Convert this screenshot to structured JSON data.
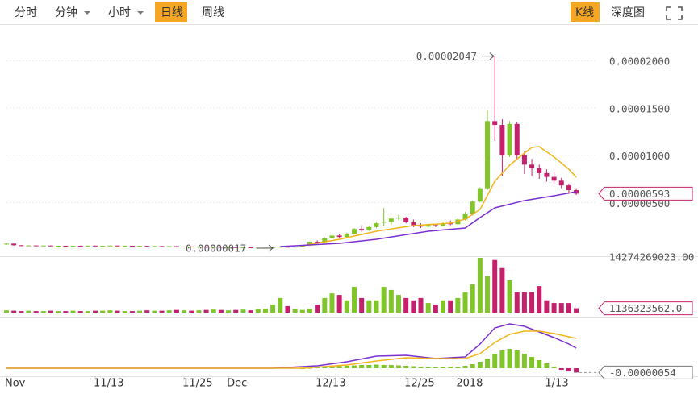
{
  "toolbar": {
    "left_tabs": [
      "分时",
      "分钟",
      "小时",
      "日线",
      "周线"
    ],
    "active_left": 3,
    "right_tabs": [
      "K线",
      "深度图"
    ],
    "active_right": 0
  },
  "chart_data": {
    "type": "candlestick",
    "up_color": "#80c52a",
    "down_color": "#c4206b",
    "ylim": [
      0,
      2.385e-05
    ],
    "yticks": [
      {
        "value": 5e-06,
        "label": "0.00000500"
      },
      {
        "value": 1e-05,
        "label": "0.00001000"
      },
      {
        "value": 1.5e-05,
        "label": "0.00001500"
      },
      {
        "value": 2e-05,
        "label": "0.00002000"
      }
    ],
    "grid": true,
    "xticks": [
      {
        "value": 0,
        "label": "Nov"
      },
      {
        "value": 12,
        "label": "11/13"
      },
      {
        "value": 24,
        "label": "11/25"
      },
      {
        "value": 30,
        "label": "Dec"
      },
      {
        "value": 42,
        "label": "12/13"
      },
      {
        "value": 54,
        "label": "12/25"
      },
      {
        "value": 61,
        "label": "2018"
      },
      {
        "value": 73,
        "label": "1/13"
      }
    ],
    "ohlc": [
      [
        6e-07,
        7e-07,
        5e-07,
        6.5e-07
      ],
      [
        6.5e-07,
        6.6e-07,
        4.5e-07,
        4.8e-07
      ],
      [
        4.8e-07,
        5e-07,
        4.2e-07,
        4.4e-07
      ],
      [
        4.4e-07,
        4.8e-07,
        4.2e-07,
        4.6e-07
      ],
      [
        4.6e-07,
        4.7e-07,
        4.1e-07,
        4.3e-07
      ],
      [
        4.3e-07,
        4.6e-07,
        4.2e-07,
        4.5e-07
      ],
      [
        4.5e-07,
        4.6e-07,
        4e-07,
        4.1e-07
      ],
      [
        4.1e-07,
        4.4e-07,
        4e-07,
        4.3e-07
      ],
      [
        4.3e-07,
        4.4e-07,
        3.9e-07,
        4e-07
      ],
      [
        4e-07,
        4.3e-07,
        3.9e-07,
        4.2e-07
      ],
      [
        4.2e-07,
        4.4e-07,
        4e-07,
        4.1e-07
      ],
      [
        4.1e-07,
        4.5e-07,
        4e-07,
        4.4e-07
      ],
      [
        4.4e-07,
        4.5e-07,
        4e-07,
        4.1e-07
      ],
      [
        4.1e-07,
        4.3e-07,
        3.8e-07,
        4.2e-07
      ],
      [
        4.2e-07,
        4.6e-07,
        4.1e-07,
        4.5e-07
      ],
      [
        4.5e-07,
        4.6e-07,
        4.1e-07,
        4.2e-07
      ],
      [
        4.2e-07,
        4.4e-07,
        4e-07,
        4.3e-07
      ],
      [
        4.3e-07,
        4.4e-07,
        3.9e-07,
        4e-07
      ],
      [
        4e-07,
        4.2e-07,
        3.8e-07,
        4.1e-07
      ],
      [
        4.1e-07,
        4.2e-07,
        3.7e-07,
        3.8e-07
      ],
      [
        3.8e-07,
        4e-07,
        3.6e-07,
        3.9e-07
      ],
      [
        3.9e-07,
        4e-07,
        3.5e-07,
        3.6e-07
      ],
      [
        3.6e-07,
        3.9e-07,
        3.4e-07,
        3.8e-07
      ],
      [
        3.8e-07,
        3.9e-07,
        3.3e-07,
        3.4e-07
      ],
      [
        3.4e-07,
        3.6e-07,
        3.2e-07,
        3.5e-07
      ],
      [
        3.5e-07,
        3.6e-07,
        3.1e-07,
        3.2e-07
      ],
      [
        3.2e-07,
        3.4e-07,
        3e-07,
        3.3e-07
      ],
      [
        3.3e-07,
        3.4e-07,
        2.9e-07,
        3e-07
      ],
      [
        3e-07,
        3.2e-07,
        2.8e-07,
        3.1e-07
      ],
      [
        3.1e-07,
        3.2e-07,
        2.6e-07,
        2.7e-07
      ],
      [
        2.7e-07,
        2.9e-07,
        2.5e-07,
        2.8e-07
      ],
      [
        2.8e-07,
        2.9e-07,
        2.3e-07,
        2.4e-07
      ],
      [
        2.4e-07,
        2.6e-07,
        2.1e-07,
        2.5e-07
      ],
      [
        2.5e-07,
        2.6e-07,
        2e-07,
        2.1e-07
      ],
      [
        2.1e-07,
        2.3e-07,
        1.8e-07,
        2.2e-07
      ],
      [
        2.2e-07,
        2.4e-07,
        1.7e-07,
        2.3e-07
      ],
      [
        2.3e-07,
        2.9e-07,
        2.2e-07,
        2.8e-07
      ],
      [
        2.8e-07,
        3.4e-07,
        2.6e-07,
        3.2e-07
      ],
      [
        3.2e-07,
        3.5e-07,
        2.9e-07,
        3e-07
      ],
      [
        3e-07,
        3.4e-07,
        2.9e-07,
        3.3e-07
      ],
      [
        3.3e-07,
        4.8e-07,
        3.2e-07,
        4.5e-07
      ],
      [
        4.5e-07,
        9e-07,
        4.2e-07,
        8.5e-07
      ],
      [
        8.5e-07,
        1e-06,
        7e-07,
        8e-07
      ],
      [
        8e-07,
        1.3e-06,
        7.5e-07,
        1.2e-06
      ],
      [
        1.2e-06,
        1.6e-06,
        1.1e-06,
        1.5e-06
      ],
      [
        1.5e-06,
        1.7e-06,
        1.25e-06,
        1.35e-06
      ],
      [
        1.35e-06,
        1.8e-06,
        1.3e-06,
        1.7e-06
      ],
      [
        1.7e-06,
        2.3e-06,
        1.6e-06,
        2.2e-06
      ],
      [
        2.2e-06,
        2.6e-06,
        1.9e-06,
        2.05e-06
      ],
      [
        2.05e-06,
        2.5e-06,
        2e-06,
        2.4e-06
      ],
      [
        2.4e-06,
        2.9e-06,
        2.3e-06,
        2.8e-06
      ],
      [
        2.9e-06,
        4.4e-06,
        2.5e-06,
        2.95e-06
      ],
      [
        2.95e-06,
        3.4e-06,
        2.6e-06,
        3.3e-06
      ],
      [
        3.3e-06,
        3.7e-06,
        3.1e-06,
        3.4e-06
      ],
      [
        3.4e-06,
        3.5e-06,
        2.8e-06,
        2.9e-06
      ],
      [
        2.9e-06,
        3.2e-06,
        2.4e-06,
        2.6e-06
      ],
      [
        2.6e-06,
        2.8e-06,
        2.3e-06,
        2.45e-06
      ],
      [
        2.45e-06,
        2.7e-06,
        2.35e-06,
        2.6e-06
      ],
      [
        2.6e-06,
        2.75e-06,
        2.4e-06,
        2.5e-06
      ],
      [
        2.5e-06,
        2.9e-06,
        2.45e-06,
        2.8e-06
      ],
      [
        2.8e-06,
        3.1e-06,
        2.6e-06,
        2.7e-06
      ],
      [
        2.7e-06,
        3.3e-06,
        2.6e-06,
        3.2e-06
      ],
      [
        3.2e-06,
        4e-06,
        3.1e-06,
        3.8e-06
      ],
      [
        3.8e-06,
        5.2e-06,
        3.6e-06,
        5.1e-06
      ],
      [
        5.1e-06,
        6.6e-06,
        5e-06,
        6.5e-06
      ],
      [
        6.5e-06,
        1.48e-05,
        6.3e-06,
        1.36e-05
      ],
      [
        1.36e-05,
        2.047e-05,
        1.15e-05,
        1.32e-05
      ],
      [
        1.32e-05,
        1.38e-05,
        7.8e-06,
        1e-05
      ],
      [
        1e-05,
        1.36e-05,
        9.8e-06,
        1.33e-05
      ],
      [
        1.33e-05,
        1.35e-05,
        9.5e-06,
        1e-05
      ],
      [
        1e-05,
        1.04e-05,
        8e-06,
        9e-06
      ],
      [
        9e-06,
        9.6e-06,
        7.8e-06,
        8.6e-06
      ],
      [
        8.6e-06,
        9e-06,
        7.5e-06,
        8.1e-06
      ],
      [
        8.1e-06,
        8.5e-06,
        7.2e-06,
        7.7e-06
      ],
      [
        7.7e-06,
        8.2e-06,
        6.9e-06,
        7.3e-06
      ],
      [
        7.3e-06,
        7.6e-06,
        6.5e-06,
        6.8e-06
      ],
      [
        6.8e-06,
        7e-06,
        6e-06,
        6.3e-06
      ],
      [
        6.3e-06,
        6.5e-06,
        5.8e-06,
        5.93e-06
      ]
    ],
    "last_price": "0.00000593",
    "annotations": {
      "max": "0.00002047",
      "min": "0.00000017"
    },
    "ma": [
      {
        "color": "#f2b41a",
        "x": [
          40,
          45,
          50,
          55,
          60,
          62,
          64,
          66,
          68,
          70,
          71,
          72,
          74,
          76,
          77
        ],
        "values": [
          4.3e-07,
          1.11e-06,
          1.96e-06,
          2.56e-06,
          2.81e-06,
          3.24e-06,
          4.26e-06,
          7.24e-06,
          8.94e-06,
          1.022e-05,
          1.082e-05,
          1.09e-05,
          9.8e-06,
          8.52e-06,
          7.67e-06
        ]
      },
      {
        "color": "#7a2fd0",
        "x": [
          37,
          45,
          50,
          57,
          62,
          64,
          66,
          70,
          74,
          77
        ],
        "values": [
          3.4e-07,
          6.8e-07,
          1.11e-06,
          1.96e-06,
          2.3e-06,
          3.41e-06,
          4.43e-06,
          5.2e-06,
          5.71e-06,
          6.13e-06
        ]
      }
    ],
    "volume": {
      "ylim": [
        0,
        14274269023
      ],
      "yticks": [
        {
          "value": 14274269023,
          "label": "14274269023.00"
        }
      ],
      "last_label": "1136323562.0",
      "values": [
        600000000.0,
        500000000.0,
        400000000.0,
        500000000.0,
        400000000.0,
        400000000.0,
        500000000.0,
        400000000.0,
        400000000.0,
        500000000.0,
        400000000.0,
        400000000.0,
        500000000.0,
        500000000.0,
        600000000.0,
        500000000.0,
        400000000.0,
        400000000.0,
        500000000.0,
        600000000.0,
        500000000.0,
        500000000.0,
        600000000.0,
        700000000.0,
        600000000.0,
        500000000.0,
        600000000.0,
        700000000.0,
        800000000.0,
        700000000.0,
        600000000.0,
        700000000.0,
        800000000.0,
        600000000.0,
        900000000.0,
        1000000000.0,
        2100000000.0,
        3800000000.0,
        1700000000.0,
        900000000.0,
        700000000.0,
        1000000000.0,
        2100000000.0,
        3800000000.0,
        5000000000.0,
        4600000000.0,
        3200000000.0,
        6700000000.0,
        3800000000.0,
        3200000000.0,
        3200000000.0,
        6700000000.0,
        5900000000.0,
        4600000000.0,
        3800000000.0,
        3200000000.0,
        3800000000.0,
        2500000000.0,
        2100000000.0,
        3200000000.0,
        3200000000.0,
        3800000000.0,
        5300000000.0,
        7400000000.0,
        14274269023,
        9500000000.0,
        13700000000.0,
        11600000000.0,
        8400000000.0,
        5300000000.0,
        5300000000.0,
        5300000000.0,
        6900000000.0,
        3200000000.0,
        2500000000.0,
        2500000000.0,
        2500000000.0,
        1136323562
      ]
    },
    "macd": {
      "ylim": [
        -9e-07,
        5.7e-06
      ],
      "last_label": "-0.00000054",
      "hist_x": [
        40,
        41,
        42,
        43,
        44,
        45,
        46,
        47,
        48,
        49,
        50,
        51,
        52,
        53,
        54,
        55,
        56,
        57,
        58,
        59,
        60,
        61,
        62,
        63,
        64,
        65,
        66,
        67,
        68,
        69,
        70,
        71,
        72,
        73,
        74,
        75,
        76,
        77
      ],
      "hist": [
        0,
        5e-08,
        1e-07,
        1.5e-07,
        2e-07,
        2.5e-07,
        3e-07,
        3.5e-07,
        4e-07,
        4e-07,
        4.5e-07,
        4e-07,
        4e-07,
        3.5e-07,
        3e-07,
        2.5e-07,
        2e-07,
        1.5e-07,
        1e-07,
        1e-07,
        1.5e-07,
        2e-07,
        3e-07,
        5e-07,
        8e-07,
        1.2e-06,
        1.8e-06,
        2.2e-06,
        2.4e-06,
        2.2e-06,
        1.8e-06,
        1.4e-06,
        1e-06,
        6e-07,
        2e-07,
        -2e-07,
        -4e-07,
        -5.4e-07
      ],
      "lines": [
        {
          "color": "#7a2fd0",
          "x": [
            0,
            36,
            42,
            46,
            50,
            54,
            58,
            62,
            64,
            66,
            68,
            70,
            72,
            74,
            76,
            77
          ],
          "values": [
            0,
            0,
            3e-07,
            8e-07,
            1.5e-06,
            1.6e-06,
            1.2e-06,
            1.4e-06,
            3e-06,
            5e-06,
            5.5e-06,
            5.2e-06,
            4.5e-06,
            3.8e-06,
            3e-06,
            2.5e-06
          ]
        },
        {
          "color": "#f2b41a",
          "x": [
            0,
            40,
            46,
            50,
            54,
            58,
            62,
            64,
            66,
            68,
            70,
            72,
            74,
            76,
            77
          ],
          "values": [
            0,
            0,
            4e-07,
            9e-07,
            1.3e-06,
            1.2e-06,
            1.2e-06,
            1.8e-06,
            3.2e-06,
            4.2e-06,
            4.6e-06,
            4.6e-06,
            4.3e-06,
            3.9e-06,
            3.7e-06
          ]
        }
      ]
    }
  }
}
